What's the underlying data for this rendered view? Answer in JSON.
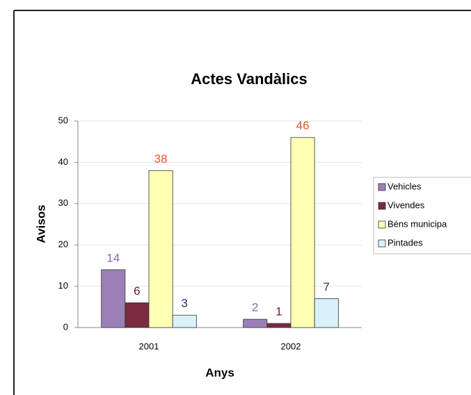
{
  "chart_data": {
    "type": "bar",
    "title": "Actes Vandàlics",
    "x_label": "Anys",
    "y_label": "Avisos",
    "categories": [
      "2001",
      "2002"
    ],
    "series": [
      {
        "name": "Vehicles",
        "color": "#9b80b8",
        "label_color": "#8668ad",
        "values": [
          14,
          2
        ]
      },
      {
        "name": "Vivendes",
        "color": "#7b2b3e",
        "label_color": "#6a1c2c",
        "values": [
          6,
          1
        ]
      },
      {
        "name": "Béns municipa",
        "color": "#ffffb4",
        "label_color": "#e8522c",
        "values": [
          38,
          46
        ]
      },
      {
        "name": "Pintades",
        "color": "#d9f1f8",
        "label_color": "#2c2c78",
        "values": [
          3,
          7
        ]
      }
    ],
    "ylim": [
      0,
      50
    ],
    "yticks": [
      0,
      10,
      20,
      30,
      40,
      50
    ],
    "grid": true
  }
}
